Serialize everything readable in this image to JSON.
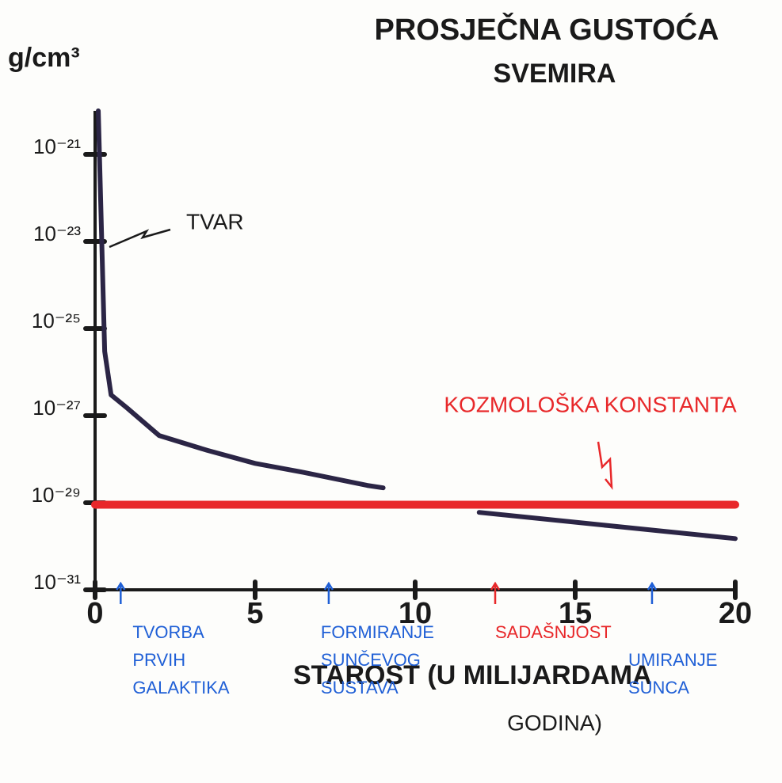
{
  "chart_data": {
    "type": "line",
    "title": [
      "PROSJEČNA GUSTOĆA",
      "SVEMIRA"
    ],
    "y_label": "g/cm³",
    "x_label": [
      "STAROST (U MILIJARDAMA",
      "GODINA)"
    ],
    "ylog": true,
    "xlim": [
      0,
      20
    ],
    "xticks": [
      0,
      5,
      10,
      15,
      20
    ],
    "ylim": [
      1e-31,
      1e-20
    ],
    "yticks": [
      {
        "value": 1e-21,
        "label": "10⁻²¹"
      },
      {
        "value": 1e-23,
        "label": "10⁻²³"
      },
      {
        "value": 1e-25,
        "label": "10⁻²⁵"
      },
      {
        "value": 1e-27,
        "label": "10⁻²⁷"
      },
      {
        "value": 1e-29,
        "label": "10⁻²⁹"
      },
      {
        "value": 1e-31,
        "label": "10⁻³¹"
      }
    ],
    "series": [
      {
        "name": "TVAR",
        "color": "#2b2545",
        "x": [
          0.1,
          0.3,
          0.5,
          1,
          2,
          3.5,
          5,
          6.5,
          8.5,
          9,
          null,
          12,
          16,
          20
        ],
        "values": [
          1e-20,
          3e-26,
          3e-27,
          1.5e-27,
          3.5e-28,
          1.6e-28,
          8e-29,
          5e-29,
          2.5e-29,
          2.2e-29,
          null,
          6e-30,
          3e-30,
          1.5e-30
        ]
      },
      {
        "name": "KOZMOLOŠKA KONSTANTA",
        "color": "#e8282a",
        "x": [
          0,
          20
        ],
        "values": [
          9e-30,
          9e-30
        ]
      }
    ],
    "events": [
      {
        "lines": [
          "TVORBA",
          "PRVIH",
          "GALAKTIKA"
        ],
        "x": 0.8,
        "color": "#1f5fd6"
      },
      {
        "lines": [
          "FORMIRANJE",
          "SUNČEVOG",
          "SUSTAVA"
        ],
        "x": 7.3,
        "color": "#1f5fd6"
      },
      {
        "lines": [
          "SADAŠNJOST"
        ],
        "x": 12.5,
        "color": "#e8282a"
      },
      {
        "lines": [
          "UMIRANJE",
          "SUNCA"
        ],
        "x": 17.4,
        "color": "#1f5fd6"
      }
    ]
  }
}
